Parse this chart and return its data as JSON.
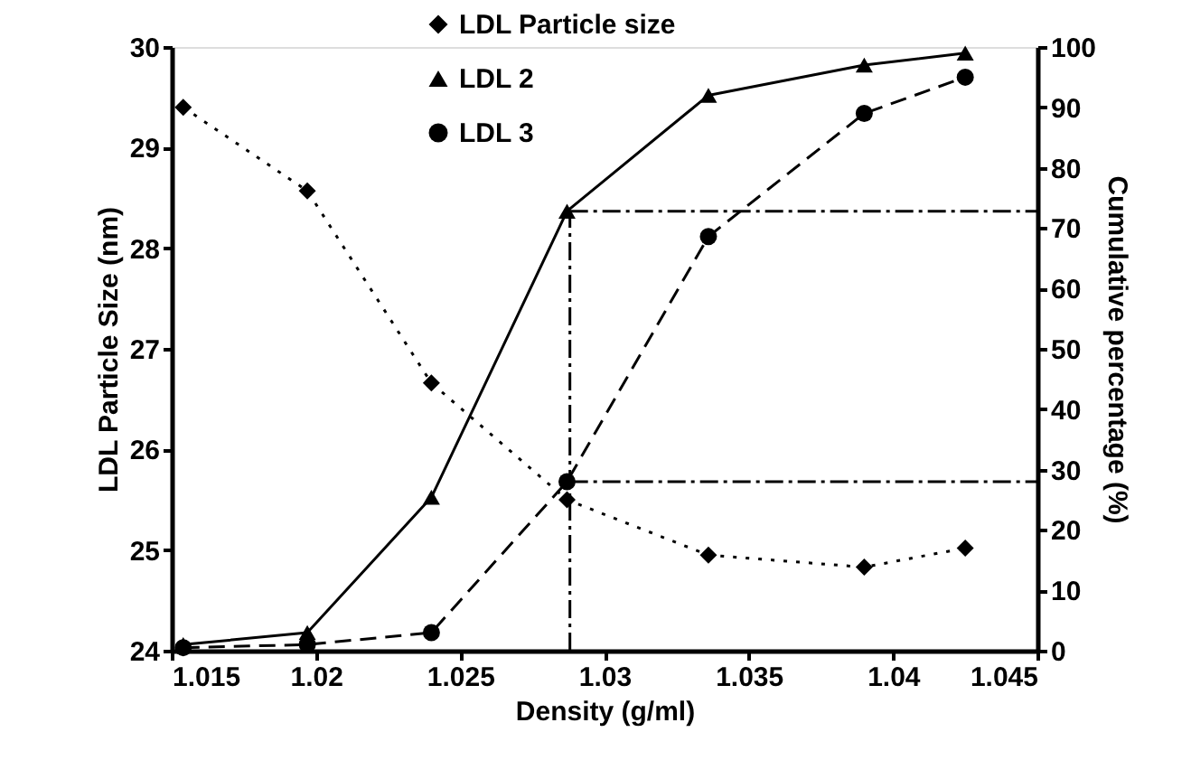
{
  "chart_data": {
    "type": "line",
    "xlabel": "Density (g/ml)",
    "ylabel": "LDL Particle Size (nm)",
    "y2label": "Cumulative percentage (%)",
    "x": [
      1.0154,
      1.0197,
      1.024,
      1.0287,
      1.0336,
      1.039,
      1.0425
    ],
    "series": [
      {
        "name": "LDL Particle size",
        "color": "#000000",
        "marker": "diamond",
        "line_style": "dotted",
        "values": [
          29.4,
          28.57,
          26.66,
          25.5,
          24.95,
          24.83,
          25.02
        ]
      },
      {
        "name": "LDL 2",
        "color": "#000000",
        "marker": "triangle",
        "line_style": "solid",
        "axis": "y2",
        "values": [
          1,
          3,
          25.4,
          72.8,
          92,
          97,
          99
        ]
      },
      {
        "name": "LDL 3",
        "color": "#000000",
        "marker": "circle",
        "line_style": "dashed",
        "axis": "y2",
        "values": [
          0.5,
          1,
          3,
          28,
          68.6,
          89,
          95
        ]
      }
    ],
    "xlim": [
      1.015,
      1.045
    ],
    "xticks": [
      1.015,
      1.02,
      1.025,
      1.03,
      1.035,
      1.04,
      1.045
    ],
    "ylim": [
      24,
      30
    ],
    "yticks": [
      24,
      25,
      26,
      27,
      28,
      29,
      30
    ],
    "y2lim": [
      0,
      100
    ],
    "y2ticks": [
      0,
      10,
      20,
      30,
      40,
      50,
      60,
      70,
      80,
      90,
      100
    ],
    "ref_lines": [
      {
        "axis": "x",
        "value": 1.0288,
        "line_style": "dashdot"
      },
      {
        "axis": "y2",
        "value": 72.8,
        "line_style": "dashdot"
      },
      {
        "axis": "y2",
        "value": 28,
        "line_style": "dashdot"
      }
    ],
    "grid": false,
    "legend": "top left"
  }
}
